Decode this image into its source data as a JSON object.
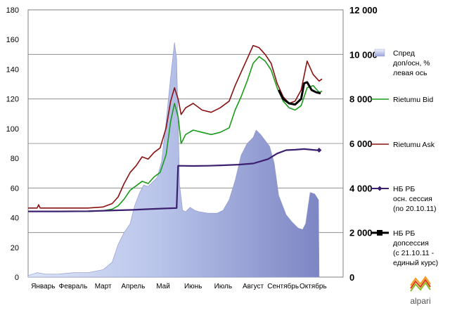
{
  "chart_data": {
    "type": "line",
    "title": "",
    "xlabel": "",
    "ylabel": "",
    "categories": [
      "Январь",
      "Февраль",
      "Март",
      "Апрель",
      "Май",
      "Июнь",
      "Июль",
      "Август",
      "Сентябрь",
      "Октябрь"
    ],
    "y_left": {
      "min": 0,
      "max": 180,
      "ticks": [
        "0",
        "20",
        "40",
        "60",
        "80",
        "100",
        "120",
        "140",
        "160",
        "180"
      ]
    },
    "y_right": {
      "min": 0,
      "max": 12000,
      "ticks": [
        "0",
        "2 000",
        "4 000",
        "6 000",
        "8 000",
        "10 000",
        "12 000"
      ]
    },
    "x_range": [
      0,
      10.5
    ],
    "grid": "horizontal at right-axis ticks",
    "legend_position": "right",
    "colors": {
      "spread": "#9aa4d8",
      "bid": "#1a9c1a",
      "ask": "#8b1010",
      "nb_main": "#3c2070",
      "nb_extra": "#000000"
    },
    "legend": [
      {
        "key": "spread",
        "lines": [
          "Спред",
          "доп/осн, %",
          "левая ось"
        ]
      },
      {
        "key": "bid",
        "lines": [
          "Rietumu Bid"
        ]
      },
      {
        "key": "ask",
        "lines": [
          "Rietumu Ask"
        ]
      },
      {
        "key": "nb_main",
        "lines": [
          "НБ РБ",
          "осн. сессия",
          "(по 20.10.11)"
        ]
      },
      {
        "key": "nb_extra",
        "lines": [
          "НБ РБ",
          "допсессия",
          "(с 21.10.11 -",
          "единый курс)"
        ]
      }
    ],
    "series": [
      {
        "name": "Спред доп/осн, % левая ось",
        "axis": "left",
        "kind": "area",
        "points": [
          [
            0.0,
            1
          ],
          [
            0.3,
            3
          ],
          [
            0.6,
            2
          ],
          [
            1.0,
            2
          ],
          [
            1.5,
            3
          ],
          [
            2.0,
            3
          ],
          [
            2.5,
            5
          ],
          [
            2.8,
            10
          ],
          [
            3.0,
            22
          ],
          [
            3.2,
            30
          ],
          [
            3.4,
            36
          ],
          [
            3.55,
            48
          ],
          [
            3.7,
            56
          ],
          [
            3.85,
            62
          ],
          [
            4.0,
            61
          ],
          [
            4.15,
            64
          ],
          [
            4.3,
            67
          ],
          [
            4.45,
            78
          ],
          [
            4.6,
            105
          ],
          [
            4.75,
            135
          ],
          [
            4.88,
            158
          ],
          [
            4.95,
            147
          ],
          [
            5.05,
            62
          ],
          [
            5.15,
            45
          ],
          [
            5.25,
            44
          ],
          [
            5.4,
            47
          ],
          [
            5.55,
            45
          ],
          [
            5.7,
            44
          ],
          [
            6.0,
            43
          ],
          [
            6.3,
            43
          ],
          [
            6.5,
            45
          ],
          [
            6.7,
            52
          ],
          [
            6.9,
            65
          ],
          [
            7.1,
            82
          ],
          [
            7.3,
            90
          ],
          [
            7.5,
            94
          ],
          [
            7.6,
            99
          ],
          [
            7.75,
            96
          ],
          [
            7.9,
            92
          ],
          [
            8.05,
            88
          ],
          [
            8.2,
            77
          ],
          [
            8.35,
            55
          ],
          [
            8.6,
            42
          ],
          [
            8.8,
            37
          ],
          [
            9.0,
            33
          ],
          [
            9.15,
            32
          ],
          [
            9.25,
            36
          ],
          [
            9.4,
            57
          ],
          [
            9.55,
            56
          ],
          [
            9.68,
            52
          ],
          [
            9.7,
            0
          ]
        ]
      },
      {
        "name": "Rietumu Bid",
        "axis": "right",
        "points": [
          [
            0.0,
            2950
          ],
          [
            0.3,
            2950
          ],
          [
            0.6,
            2950
          ],
          [
            1.0,
            2950
          ],
          [
            1.5,
            2950
          ],
          [
            2.0,
            2950
          ],
          [
            2.5,
            2980
          ],
          [
            2.8,
            3050
          ],
          [
            3.0,
            3200
          ],
          [
            3.2,
            3500
          ],
          [
            3.4,
            3900
          ],
          [
            3.6,
            4100
          ],
          [
            3.8,
            4300
          ],
          [
            4.0,
            4200
          ],
          [
            4.2,
            4500
          ],
          [
            4.4,
            4700
          ],
          [
            4.6,
            5500
          ],
          [
            4.75,
            7000
          ],
          [
            4.88,
            7800
          ],
          [
            5.0,
            7200
          ],
          [
            5.1,
            6000
          ],
          [
            5.25,
            6400
          ],
          [
            5.5,
            6600
          ],
          [
            5.8,
            6500
          ],
          [
            6.1,
            6400
          ],
          [
            6.4,
            6500
          ],
          [
            6.7,
            6700
          ],
          [
            6.9,
            7500
          ],
          [
            7.1,
            8100
          ],
          [
            7.3,
            8800
          ],
          [
            7.5,
            9600
          ],
          [
            7.7,
            9900
          ],
          [
            7.9,
            9700
          ],
          [
            8.1,
            9300
          ],
          [
            8.3,
            8500
          ],
          [
            8.5,
            7900
          ],
          [
            8.7,
            7600
          ],
          [
            8.9,
            7500
          ],
          [
            9.1,
            7700
          ],
          [
            9.3,
            8500
          ],
          [
            9.5,
            8600
          ],
          [
            9.7,
            8300
          ],
          [
            9.8,
            8350
          ]
        ]
      },
      {
        "name": "Rietumu Ask",
        "axis": "right",
        "points": [
          [
            0.0,
            3100
          ],
          [
            0.3,
            3100
          ],
          [
            0.35,
            3250
          ],
          [
            0.4,
            3100
          ],
          [
            1.0,
            3100
          ],
          [
            1.5,
            3100
          ],
          [
            2.0,
            3100
          ],
          [
            2.5,
            3150
          ],
          [
            2.8,
            3300
          ],
          [
            3.0,
            3600
          ],
          [
            3.2,
            4200
          ],
          [
            3.4,
            4700
          ],
          [
            3.6,
            5000
          ],
          [
            3.8,
            5400
          ],
          [
            4.0,
            5300
          ],
          [
            4.2,
            5600
          ],
          [
            4.4,
            5800
          ],
          [
            4.6,
            6700
          ],
          [
            4.75,
            7900
          ],
          [
            4.88,
            8500
          ],
          [
            5.0,
            8000
          ],
          [
            5.1,
            7300
          ],
          [
            5.25,
            7600
          ],
          [
            5.5,
            7800
          ],
          [
            5.8,
            7500
          ],
          [
            6.1,
            7400
          ],
          [
            6.4,
            7600
          ],
          [
            6.7,
            7900
          ],
          [
            6.9,
            8600
          ],
          [
            7.1,
            9200
          ],
          [
            7.3,
            9800
          ],
          [
            7.5,
            10400
          ],
          [
            7.7,
            10300
          ],
          [
            7.9,
            10000
          ],
          [
            8.1,
            9600
          ],
          [
            8.3,
            8700
          ],
          [
            8.5,
            8100
          ],
          [
            8.7,
            7800
          ],
          [
            8.9,
            7900
          ],
          [
            9.1,
            8400
          ],
          [
            9.3,
            9700
          ],
          [
            9.5,
            9100
          ],
          [
            9.7,
            8800
          ],
          [
            9.8,
            8900
          ]
        ]
      },
      {
        "name": "НБ РБ осн. сессия (по 20.10.11)",
        "axis": "right",
        "points": [
          [
            0.0,
            2950
          ],
          [
            1.0,
            2950
          ],
          [
            2.0,
            2960
          ],
          [
            3.0,
            3000
          ],
          [
            3.5,
            3020
          ],
          [
            4.0,
            3050
          ],
          [
            4.5,
            3080
          ],
          [
            4.95,
            3100
          ],
          [
            5.0,
            5000
          ],
          [
            5.5,
            4990
          ],
          [
            6.0,
            5000
          ],
          [
            6.5,
            5020
          ],
          [
            7.0,
            5050
          ],
          [
            7.5,
            5100
          ],
          [
            8.0,
            5300
          ],
          [
            8.3,
            5550
          ],
          [
            8.6,
            5700
          ],
          [
            8.9,
            5720
          ],
          [
            9.2,
            5750
          ],
          [
            9.6,
            5700
          ],
          [
            9.7,
            5700
          ]
        ]
      },
      {
        "name": "НБ РБ допсессия (с 21.10.11 - единый курс)",
        "axis": "right",
        "points": [
          [
            8.35,
            8400
          ],
          [
            8.5,
            8000
          ],
          [
            8.7,
            7800
          ],
          [
            8.9,
            7750
          ],
          [
            9.1,
            8000
          ],
          [
            9.2,
            8700
          ],
          [
            9.3,
            8750
          ],
          [
            9.45,
            8400
          ],
          [
            9.6,
            8300
          ],
          [
            9.75,
            8250
          ]
        ]
      }
    ]
  },
  "logo": {
    "text": "alpari"
  }
}
